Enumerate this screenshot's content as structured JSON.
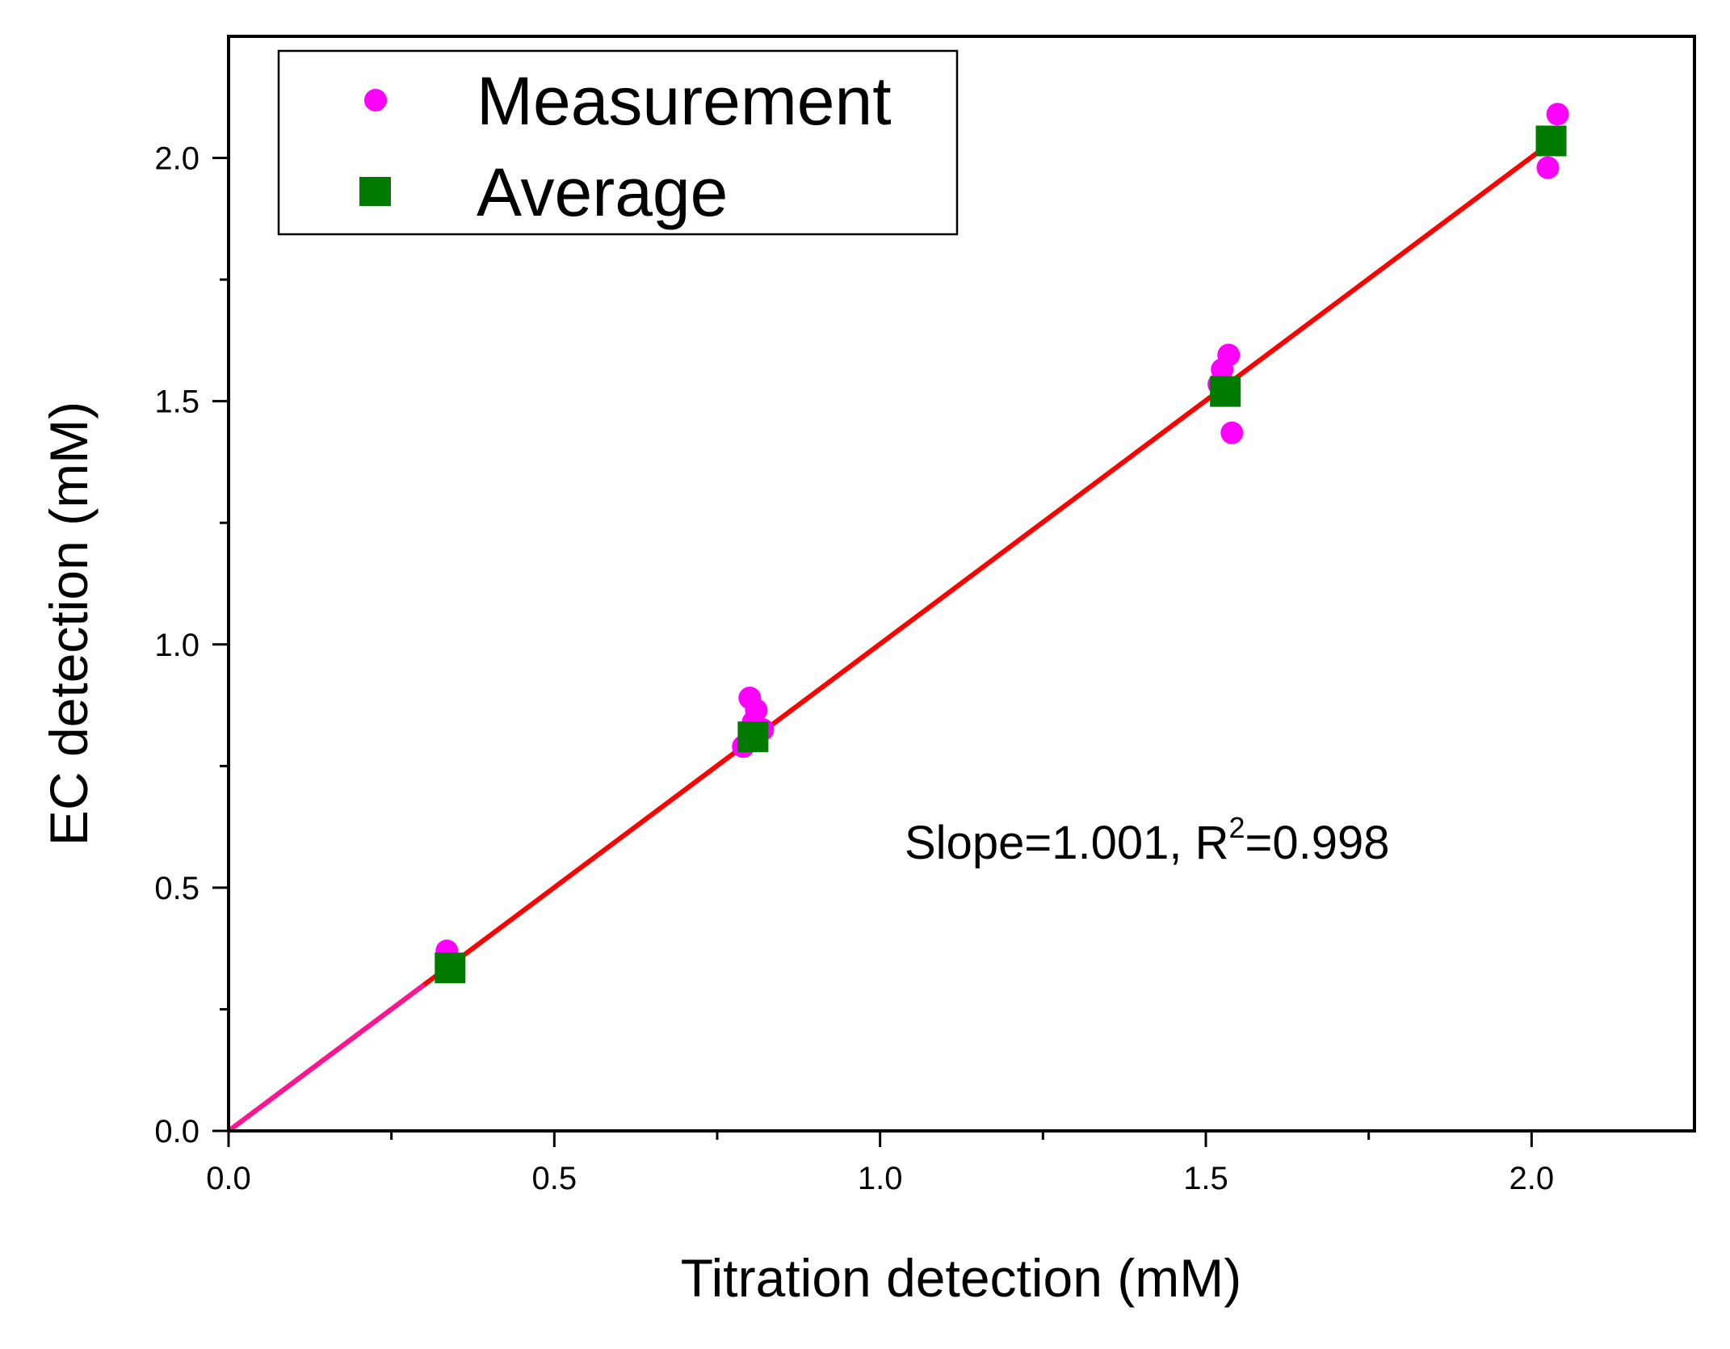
{
  "chart_data": {
    "type": "scatter",
    "xlabel": "Titration detection (mM)",
    "ylabel": "EC detection (mM)",
    "xlim": [
      0.0,
      2.25
    ],
    "ylim": [
      0.0,
      2.25
    ],
    "x_ticks": [
      "0.0",
      "0.5",
      "1.0",
      "1.5",
      "2.0"
    ],
    "y_ticks": [
      "0.0",
      "0.5",
      "1.0",
      "1.5",
      "2.0"
    ],
    "grid": false,
    "legend_position": "top-left",
    "series": [
      {
        "name": "Measurement",
        "marker": "circle",
        "color": "#ff00ff",
        "x": [
          0.335,
          0.79,
          0.8,
          0.81,
          0.82,
          0.805,
          1.52,
          1.525,
          1.535,
          1.54,
          2.025,
          2.04
        ],
        "y": [
          0.37,
          0.79,
          0.89,
          0.865,
          0.825,
          0.84,
          1.535,
          1.565,
          1.595,
          1.435,
          1.98,
          2.09
        ]
      },
      {
        "name": "Average",
        "marker": "square",
        "color": "#007a00",
        "x": [
          0.34,
          0.805,
          1.53,
          2.03
        ],
        "y": [
          0.335,
          0.81,
          1.52,
          2.035
        ]
      }
    ],
    "fit_line": {
      "color": "#ff0000",
      "slope": 1.001,
      "x_range": [
        0.0,
        2.04
      ]
    },
    "annotation": {
      "prefix": "Slope=1.001, R",
      "superscript": "2",
      "suffix": "=0.998"
    }
  }
}
